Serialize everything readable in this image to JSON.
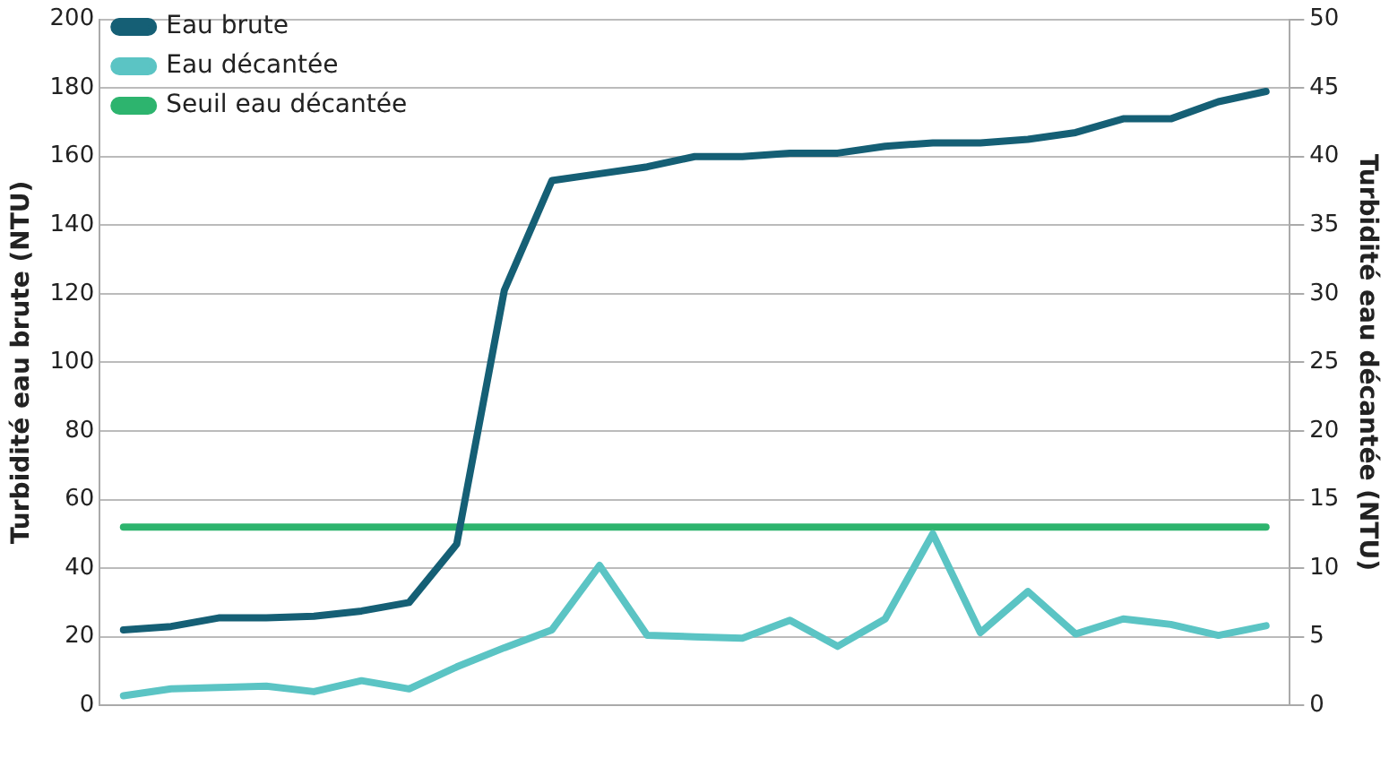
{
  "chart_data": {
    "type": "line",
    "ylabel": "Turbidité eau brute (NTU)",
    "y2label": "Turbidité eau décantée (NTU)",
    "categories": [
      null,
      null,
      null,
      null,
      null,
      null,
      null,
      null,
      null,
      null,
      null,
      null,
      null,
      null,
      null,
      null,
      null,
      null,
      null,
      null,
      null,
      null,
      null,
      null,
      null
    ],
    "series": [
      {
        "name": "Eau brute",
        "color": "#155f75",
        "values": [
          22,
          23,
          25.5,
          25.5,
          26,
          27.5,
          30,
          47,
          121,
          153,
          155,
          157,
          160,
          160,
          161,
          161,
          163,
          164,
          164,
          165,
          167,
          171,
          171,
          176,
          179
        ]
      },
      {
        "name": "Eau décantée",
        "color": "#5bc4c4",
        "axis": "y2",
        "values": [
          0.7,
          1.2,
          1.3,
          1.4,
          1.0,
          1.8,
          1.2,
          2.8,
          4.2,
          5.5,
          10.2,
          5.1,
          5.0,
          4.9,
          6.2,
          4.3,
          6.3,
          12.5,
          5.3,
          8.3,
          5.2,
          6.3,
          5.9,
          5.1,
          5.8
        ]
      },
      {
        "name": "Seuil eau décantée",
        "color": "#2db46e",
        "axis": "y2",
        "values": [
          13,
          13,
          13,
          13,
          13,
          13,
          13,
          13,
          13,
          13,
          13,
          13,
          13,
          13,
          13,
          13,
          13,
          13,
          13,
          13,
          13,
          13,
          13,
          13,
          13
        ]
      }
    ],
    "ylim": [
      0,
      200
    ],
    "yticks": [
      0,
      20,
      40,
      60,
      80,
      100,
      120,
      140,
      160,
      180,
      200
    ],
    "y2lim": [
      0,
      50
    ],
    "y2ticks": [
      0,
      5,
      10,
      15,
      20,
      25,
      30,
      35,
      40,
      45,
      50
    ],
    "grid": "y",
    "legend": "top left",
    "marker": "none",
    "line_style": "solid"
  }
}
